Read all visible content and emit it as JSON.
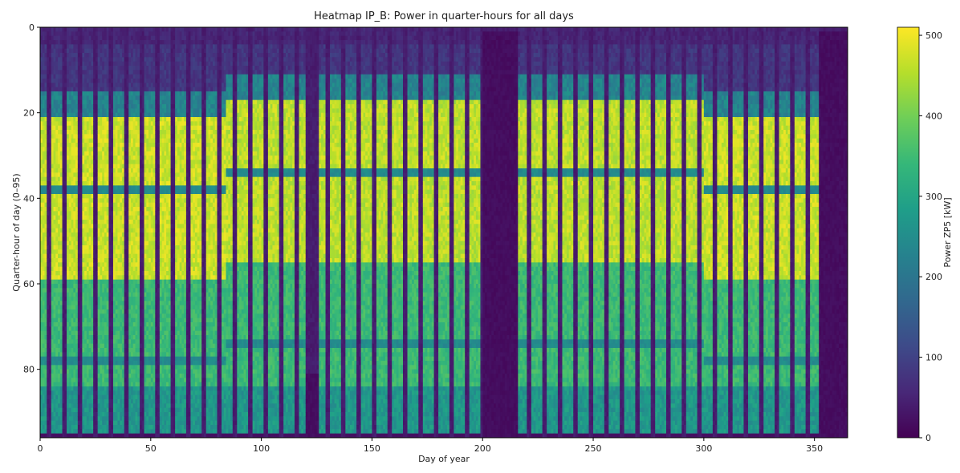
{
  "chart_data": {
    "type": "heatmap",
    "title": "Heatmap IP_B: Power in quarter-hours for all days",
    "xlabel": "Day of year",
    "ylabel": "Quarter-hour of day (0–95)",
    "xlim": [
      0,
      365
    ],
    "ylim": [
      96,
      0
    ],
    "x_ticks": [
      0,
      50,
      100,
      150,
      200,
      250,
      300,
      350
    ],
    "y_ticks": [
      0,
      20,
      40,
      60,
      80
    ],
    "colorbar": {
      "label": "Power ZP5 [kW]",
      "colormap": "viridis",
      "vmin": 0,
      "vmax": 510,
      "ticks": [
        0,
        100,
        200,
        300,
        400,
        500
      ]
    },
    "colormap_stops": [
      "#440154",
      "#482878",
      "#3e4a89",
      "#31688e",
      "#26828e",
      "#1f9e89",
      "#35b779",
      "#6ece58",
      "#b5de2b",
      "#fde725"
    ],
    "weekly_pattern": {
      "weekdays_on_per_week": 5,
      "weekend_days": 2,
      "weekday_power_kw": {
        "night": 40,
        "morning_ramp": 200,
        "day_peak": 480,
        "afternoon": 300,
        "evening": 320
      },
      "weekend_power_kw": 30
    },
    "seasons": [
      {
        "day_range": [
          1,
          84
        ],
        "work_start_qh": 21,
        "peak_end_qh": 59,
        "break_qh": [
          37,
          77
        ],
        "peak_kw": 480
      },
      {
        "day_range": [
          85,
          120
        ],
        "work_start_qh": 17,
        "peak_end_qh": 55,
        "break_qh": [
          33,
          73
        ],
        "peak_kw": 470
      },
      {
        "day_range": [
          121,
          126
        ],
        "work_start_qh": 17,
        "peak_end_qh": 80,
        "break_qh": [],
        "peak_kw": 20
      },
      {
        "day_range": [
          127,
          200
        ],
        "work_start_qh": 17,
        "peak_end_qh": 55,
        "break_qh": [
          33,
          73
        ],
        "peak_kw": 470
      },
      {
        "day_range": [
          201,
          216
        ],
        "work_start_qh": 0,
        "peak_end_qh": 0,
        "break_qh": [],
        "peak_kw": 25
      },
      {
        "day_range": [
          217,
          300
        ],
        "work_start_qh": 17,
        "peak_end_qh": 55,
        "break_qh": [
          33,
          73
        ],
        "peak_kw": 470
      },
      {
        "day_range": [
          301,
          352
        ],
        "work_start_qh": 21,
        "peak_end_qh": 59,
        "break_qh": [
          37,
          77
        ],
        "peak_kw": 480
      },
      {
        "day_range": [
          353,
          365
        ],
        "work_start_qh": 0,
        "peak_end_qh": 0,
        "break_qh": [],
        "peak_kw": 30
      }
    ]
  }
}
